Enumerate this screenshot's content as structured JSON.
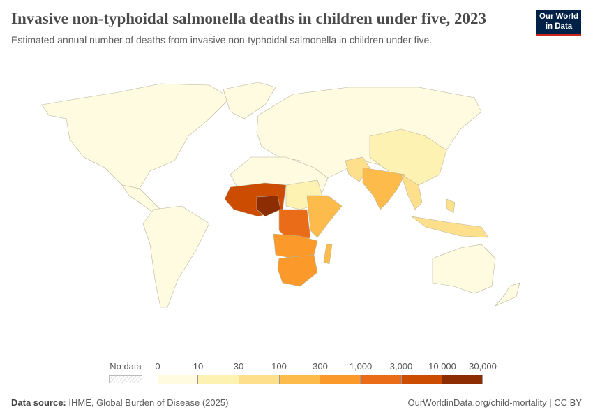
{
  "header": {
    "title": "Invasive non-typhoidal salmonella deaths in children under five, 2023",
    "subtitle": "Estimated annual number of deaths from invasive non-typhoidal salmonella in children under five.",
    "logo": "Our World in Data"
  },
  "legend": {
    "no_data": "No data",
    "ticks": [
      "0",
      "10",
      "30",
      "100",
      "300",
      "1,000",
      "3,000",
      "10,000",
      "30,000"
    ],
    "colors": [
      "#fefbe0",
      "#fef2b3",
      "#fedf8c",
      "#fdbb4b",
      "#fb9a2b",
      "#ea6c18",
      "#cc4c02",
      "#8c2d04"
    ]
  },
  "footer": {
    "source_label": "Data source:",
    "source": "IHME, Global Burden of Disease (2025)",
    "link": "OurWorldinData.org/child-mortality | CC BY"
  }
}
